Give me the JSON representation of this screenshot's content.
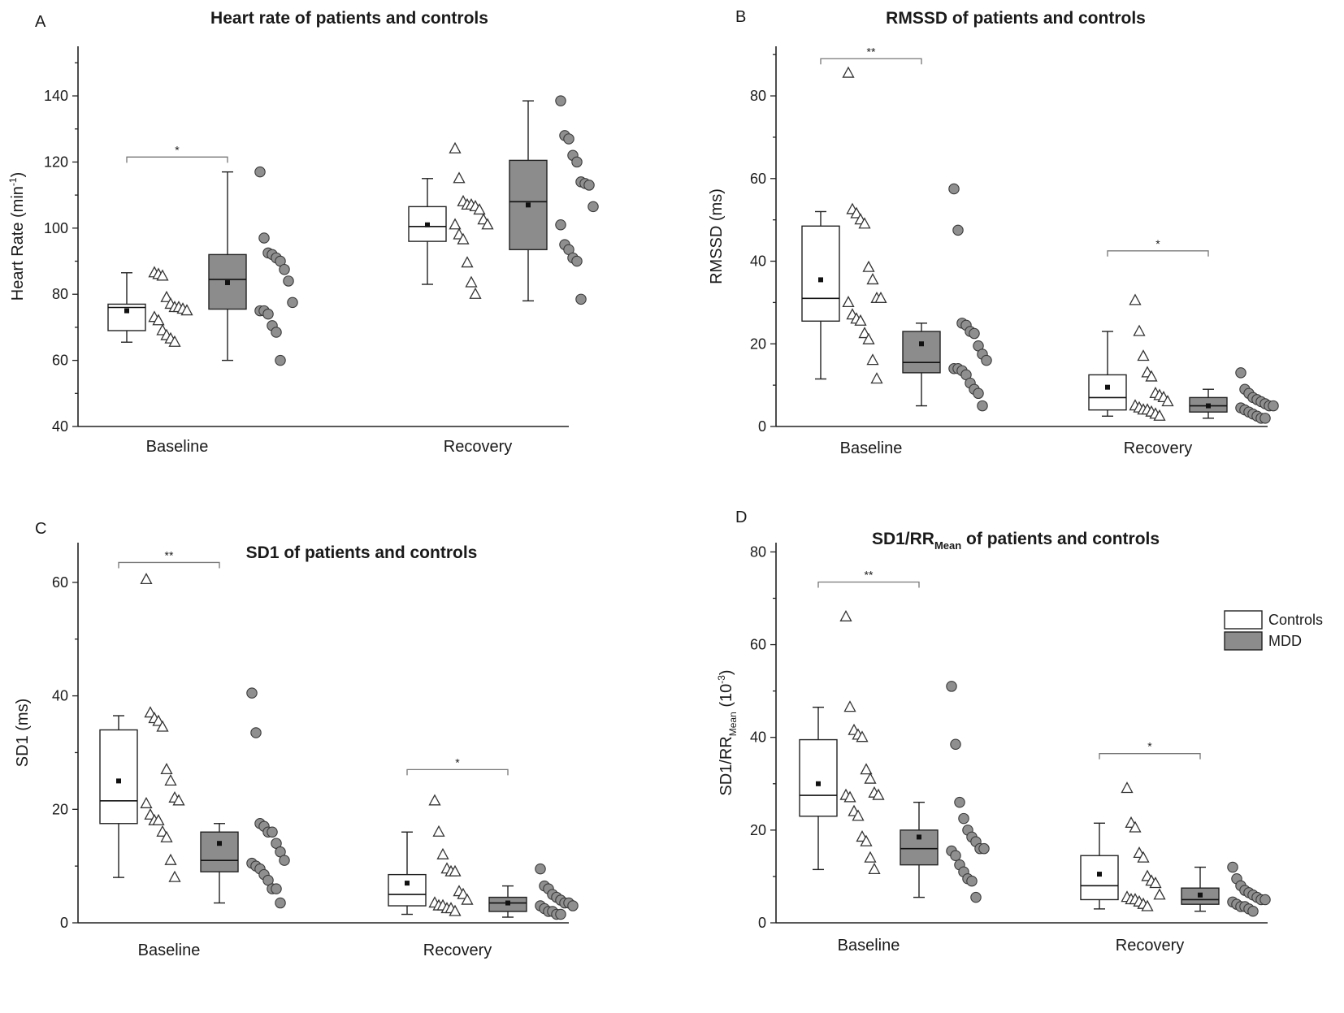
{
  "chart_data": [
    {
      "letter": "A",
      "type": "box",
      "title": "Heart rate of patients and controls",
      "title_sub": "",
      "title_suffix": "",
      "ylabel": "Heart Rate (min",
      "ylabel_sup": "-1",
      "ylabel_sub": "",
      "ylabel_suffix": ")",
      "ylim": [
        40,
        155
      ],
      "yticks": [
        40,
        60,
        80,
        100,
        120,
        140
      ],
      "categories": [
        "Baseline",
        "Recovery"
      ],
      "groups": [
        {
          "category": "Baseline",
          "series": "Controls",
          "min": 65.5,
          "q1": 69,
          "median": 76,
          "q3": 77,
          "max": 86.5,
          "mean": 75,
          "points": [
            86.5,
            86,
            85.5,
            79,
            77,
            76,
            76,
            75.5,
            75,
            73,
            72,
            69,
            67.5,
            66.5,
            65.5
          ]
        },
        {
          "category": "Baseline",
          "series": "MDD",
          "min": 60,
          "q1": 75.5,
          "median": 84.5,
          "q3": 92,
          "max": 117,
          "mean": 83.5,
          "points": [
            117,
            97,
            92.5,
            92,
            91,
            90,
            87.5,
            84,
            77.5,
            75,
            75,
            74,
            70.5,
            68.5,
            60
          ]
        },
        {
          "category": "Recovery",
          "series": "Controls",
          "min": 83,
          "q1": 96,
          "median": 100.5,
          "q3": 106.5,
          "max": 115,
          "mean": 101,
          "points": [
            124,
            115,
            108,
            107,
            107,
            106.5,
            105.5,
            102.5,
            101,
            101,
            98,
            96.5,
            89.5,
            83.5,
            80
          ]
        },
        {
          "category": "Recovery",
          "series": "MDD",
          "min": 78,
          "q1": 93.5,
          "median": 108,
          "q3": 120.5,
          "max": 138.5,
          "mean": 107,
          "points": [
            138.5,
            128,
            127,
            122,
            120,
            114,
            113.5,
            113,
            106.5,
            101,
            95,
            93.5,
            91,
            90,
            78.5
          ]
        }
      ],
      "significance": [
        {
          "category": "Baseline",
          "label": "*",
          "y": 121.5
        }
      ]
    },
    {
      "letter": "B",
      "type": "box",
      "title": "RMSSD of patients and controls",
      "title_sub": "",
      "title_suffix": "",
      "ylabel": "RMSSD (ms)",
      "ylabel_sup": "",
      "ylabel_sub": "",
      "ylabel_suffix": "",
      "ylim": [
        0,
        92
      ],
      "yticks": [
        0,
        20,
        40,
        60,
        80
      ],
      "categories": [
        "Baseline",
        "Recovery"
      ],
      "groups": [
        {
          "category": "Baseline",
          "series": "Controls",
          "min": 11.5,
          "q1": 25.5,
          "median": 31,
          "q3": 48.5,
          "max": 52,
          "mean": 35.5,
          "points": [
            85.5,
            52.5,
            51.5,
            50,
            49,
            38.5,
            35.5,
            31,
            31,
            30,
            27,
            26,
            25.5,
            22.5,
            21,
            16,
            11.5
          ]
        },
        {
          "category": "Baseline",
          "series": "MDD",
          "min": 5,
          "q1": 13,
          "median": 15.5,
          "q3": 23,
          "max": 25,
          "mean": 20,
          "points": [
            57.5,
            47.5,
            25,
            24.5,
            23,
            22.5,
            19.5,
            17.5,
            16,
            14,
            14,
            13.5,
            12.5,
            10.5,
            9,
            8,
            5
          ]
        },
        {
          "category": "Recovery",
          "series": "Controls",
          "min": 2.5,
          "q1": 4,
          "median": 7,
          "q3": 12.5,
          "max": 23,
          "mean": 9.5,
          "points": [
            30.5,
            23,
            17,
            13,
            12,
            8,
            7.5,
            7,
            6,
            5,
            4.5,
            4,
            4,
            3.5,
            3,
            2.5
          ]
        },
        {
          "category": "Recovery",
          "series": "MDD",
          "min": 2,
          "q1": 3.5,
          "median": 5,
          "q3": 7,
          "max": 9,
          "mean": 5,
          "points": [
            13,
            9,
            8,
            7,
            6.5,
            6,
            5.5,
            5,
            5,
            4.5,
            4,
            3.5,
            3,
            2.5,
            2,
            2
          ]
        }
      ],
      "significance": [
        {
          "category": "Baseline",
          "label": "**",
          "y": 89
        },
        {
          "category": "Recovery",
          "label": "*",
          "y": 42.5
        }
      ]
    },
    {
      "letter": "C",
      "type": "box",
      "title": "SD1 of patients and controls",
      "title_sub": "",
      "title_suffix": "",
      "ylabel": "SD1 (ms)",
      "ylabel_sup": "",
      "ylabel_sub": "",
      "ylabel_suffix": "",
      "ylim": [
        0,
        67
      ],
      "yticks": [
        0,
        20,
        40,
        60
      ],
      "categories": [
        "Baseline",
        "Recovery"
      ],
      "groups": [
        {
          "category": "Baseline",
          "series": "Controls",
          "min": 8,
          "q1": 17.5,
          "median": 21.5,
          "q3": 34,
          "max": 36.5,
          "mean": 25,
          "points": [
            60.5,
            37,
            36,
            35.5,
            34.5,
            27,
            25,
            22,
            21.5,
            21,
            19,
            18,
            18,
            16,
            15,
            11,
            8
          ]
        },
        {
          "category": "Baseline",
          "series": "MDD",
          "min": 3.5,
          "q1": 9,
          "median": 11,
          "q3": 16,
          "max": 17.5,
          "mean": 14,
          "points": [
            40.5,
            33.5,
            17.5,
            17,
            16,
            16,
            14,
            12.5,
            11,
            10.5,
            10,
            9.5,
            8.5,
            7.5,
            6,
            6,
            3.5
          ]
        },
        {
          "category": "Recovery",
          "series": "Controls",
          "min": 1.5,
          "q1": 3,
          "median": 5,
          "q3": 8.5,
          "max": 16,
          "mean": 7,
          "points": [
            21.5,
            16,
            12,
            9.5,
            9,
            9,
            5.5,
            5,
            4,
            3.5,
            3,
            3,
            2.5,
            2.5,
            2
          ]
        },
        {
          "category": "Recovery",
          "series": "MDD",
          "min": 1,
          "q1": 2,
          "median": 3.5,
          "q3": 4.5,
          "max": 6.5,
          "mean": 3.5,
          "points": [
            9.5,
            6.5,
            6,
            5,
            4.5,
            4,
            3.5,
            3.5,
            3,
            3,
            2.5,
            2,
            2,
            1.5,
            1.5
          ]
        }
      ],
      "significance": [
        {
          "category": "Baseline",
          "label": "**",
          "y": 63.5
        },
        {
          "category": "Recovery",
          "label": "*",
          "y": 27
        }
      ]
    },
    {
      "letter": "D",
      "type": "box",
      "title": "SD1/RR",
      "title_sub": "Mean",
      "title_suffix": " of patients and controls",
      "ylabel": "SD1/RR",
      "ylabel_sup": "",
      "ylabel_sub": "Mean",
      "ylabel_suffix": " (10",
      "ylabel_sup2": "-3",
      "ylabel_end": ")",
      "ylim": [
        0,
        82
      ],
      "yticks": [
        0,
        20,
        40,
        60,
        80
      ],
      "categories": [
        "Baseline",
        "Recovery"
      ],
      "groups": [
        {
          "category": "Baseline",
          "series": "Controls",
          "min": 11.5,
          "q1": 23,
          "median": 27.5,
          "q3": 39.5,
          "max": 46.5,
          "mean": 30,
          "points": [
            66,
            46.5,
            41.5,
            40.5,
            40,
            33,
            31,
            28,
            27.5,
            27.5,
            27,
            24,
            23,
            18.5,
            17.5,
            14,
            11.5
          ]
        },
        {
          "category": "Baseline",
          "series": "MDD",
          "min": 5.5,
          "q1": 12.5,
          "median": 16,
          "q3": 20,
          "max": 26,
          "mean": 18.5,
          "points": [
            51,
            38.5,
            26,
            22.5,
            20,
            18.5,
            17.5,
            16,
            16,
            15.5,
            14.5,
            12.5,
            11,
            9.5,
            9,
            5.5
          ]
        },
        {
          "category": "Recovery",
          "series": "Controls",
          "min": 3,
          "q1": 5,
          "median": 8,
          "q3": 14.5,
          "max": 21.5,
          "mean": 10.5,
          "points": [
            29,
            21.5,
            20.5,
            15,
            14,
            10,
            9,
            8.5,
            6,
            5.5,
            5,
            5,
            4.5,
            4,
            3.5
          ]
        },
        {
          "category": "Recovery",
          "series": "MDD",
          "min": 2.5,
          "q1": 4,
          "median": 5,
          "q3": 7.5,
          "max": 12,
          "mean": 6,
          "points": [
            12,
            9.5,
            8,
            7,
            6.5,
            6,
            5.5,
            5,
            5,
            4.5,
            4,
            3.5,
            3.5,
            3,
            2.5
          ]
        }
      ],
      "significance": [
        {
          "category": "Baseline",
          "label": "**",
          "y": 73.5
        },
        {
          "category": "Recovery",
          "label": "*",
          "y": 36.5
        }
      ]
    }
  ],
  "legend": {
    "placement": "top-right of panel D",
    "items": [
      {
        "label": "Controls",
        "color": "#ffffff"
      },
      {
        "label": "MDD",
        "color": "#8c8c8c"
      }
    ]
  },
  "colors": {
    "controls_fill": "#ffffff",
    "mdd_fill": "#8c8c8c",
    "mdd_points": "#8f8f8f",
    "axis": "#222222",
    "bracket": "#777777"
  }
}
